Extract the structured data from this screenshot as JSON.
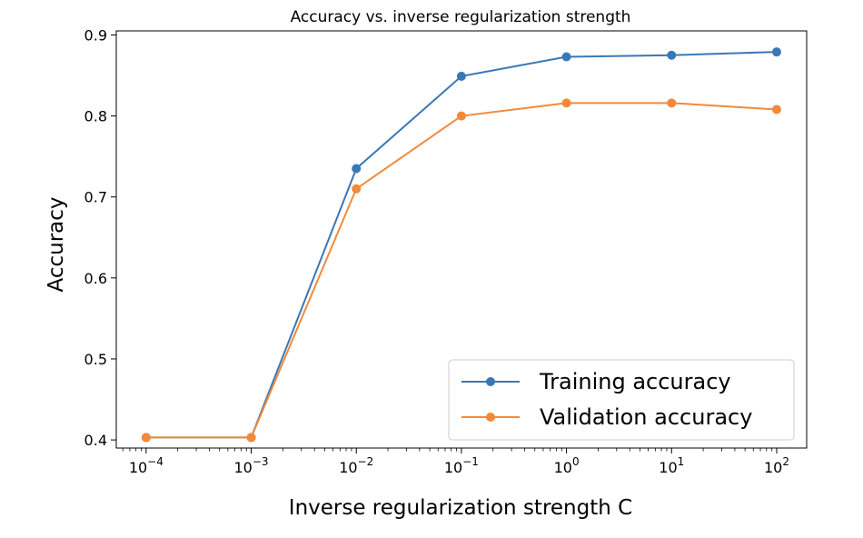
{
  "chart_data": {
    "type": "line",
    "title": "Accuracy vs. inverse regularization strength",
    "xlabel": "Inverse regularization strength C",
    "ylabel": "Accuracy",
    "x_scale": "log",
    "x": [
      0.0001,
      0.001,
      0.01,
      0.1,
      1,
      10,
      100
    ],
    "x_tick_labels": [
      {
        "base": "10",
        "exp": "−4"
      },
      {
        "base": "10",
        "exp": "−3"
      },
      {
        "base": "10",
        "exp": "−2"
      },
      {
        "base": "10",
        "exp": "−1"
      },
      {
        "base": "10",
        "exp": "0"
      },
      {
        "base": "10",
        "exp": "1"
      },
      {
        "base": "10",
        "exp": "2"
      }
    ],
    "y_ticks": [
      "0.4",
      "0.5",
      "0.6",
      "0.7",
      "0.8",
      "0.9"
    ],
    "ylim": [
      0.39,
      0.905
    ],
    "xlim": [
      5.2e-05,
      193
    ],
    "grid": false,
    "legend_position": "lower right",
    "series": [
      {
        "name": "Training accuracy",
        "color": "#3a78b5",
        "values": [
          0.403,
          0.403,
          0.735,
          0.849,
          0.873,
          0.875,
          0.879
        ]
      },
      {
        "name": "Validation accuracy",
        "color": "#f28a3a",
        "values": [
          0.403,
          0.403,
          0.71,
          0.8,
          0.816,
          0.816,
          0.808
        ]
      }
    ]
  }
}
